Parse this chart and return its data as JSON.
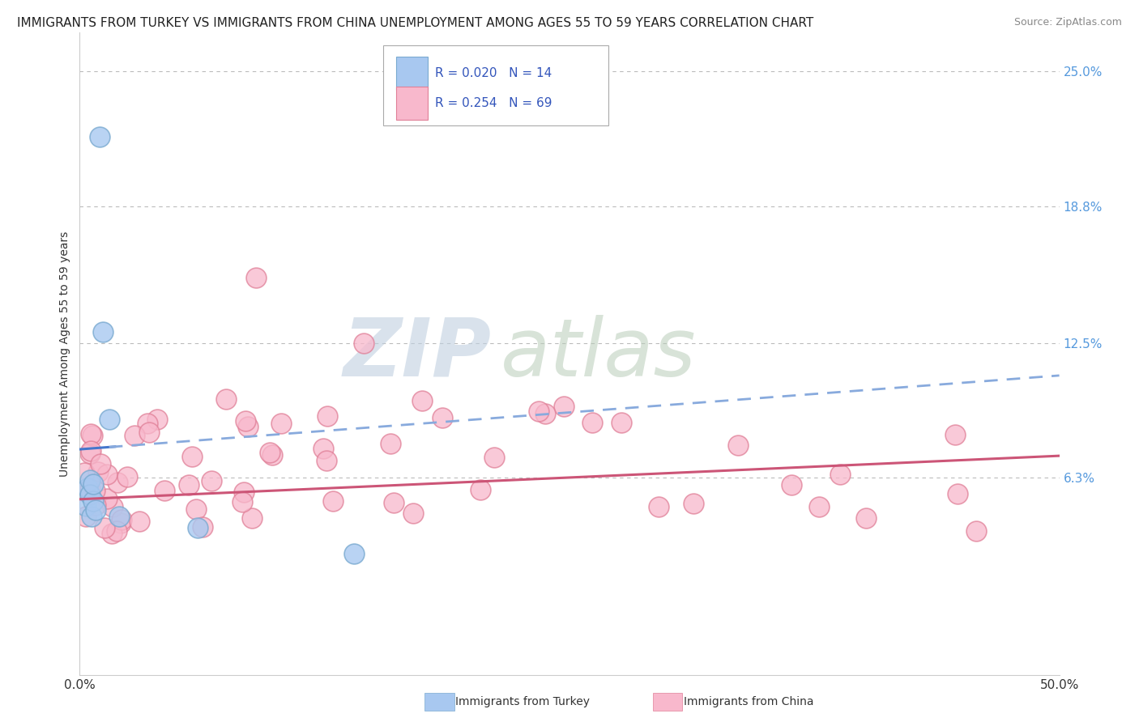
{
  "title": "IMMIGRANTS FROM TURKEY VS IMMIGRANTS FROM CHINA UNEMPLOYMENT AMONG AGES 55 TO 59 YEARS CORRELATION CHART",
  "source": "Source: ZipAtlas.com",
  "ylabel": "Unemployment Among Ages 55 to 59 years",
  "x_min": 0.0,
  "x_max": 0.5,
  "y_min": -0.028,
  "y_max": 0.268,
  "x_tick_labels": [
    "0.0%",
    "50.0%"
  ],
  "x_tick_values": [
    0.0,
    0.5
  ],
  "y_tick_labels_right": [
    "6.3%",
    "12.5%",
    "18.8%",
    "25.0%"
  ],
  "y_tick_values_right": [
    0.063,
    0.125,
    0.188,
    0.25
  ],
  "background_color": "#ffffff",
  "grid_color": "#bbbbbb",
  "turkey_color": "#a8c8f0",
  "turkey_edge_color": "#7aaad0",
  "china_color": "#f8b8cc",
  "china_edge_color": "#e08098",
  "trendline_turkey_solid_color": "#4477cc",
  "trendline_turkey_dash_color": "#88aadd",
  "trendline_china_color": "#cc5577",
  "turkey_R": "0.020",
  "turkey_N": "14",
  "china_R": "0.254",
  "china_N": "69",
  "legend_label_color": "#3355bb",
  "title_fontsize": 11,
  "source_fontsize": 9,
  "axis_label_fontsize": 10,
  "tick_fontsize": 11,
  "right_tick_color": "#5599dd",
  "watermark_zip_color": "#c8d8e8",
  "watermark_atlas_color": "#c8d8c0"
}
